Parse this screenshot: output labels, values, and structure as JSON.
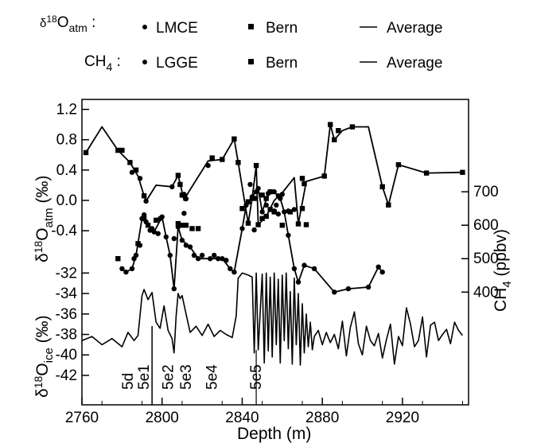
{
  "chart_data": [
    {
      "panel": "d18O_atm",
      "type": "line",
      "ylabel": "δ18Oatm (‰)",
      "y_ticks": [
        "-0.4",
        "0.0",
        "0.4",
        "0.8",
        "1.2"
      ],
      "y_tick_values": [
        -0.4,
        0.0,
        0.4,
        0.8,
        1.2
      ],
      "ylim": [
        1.3,
        -0.42
      ],
      "series": [
        {
          "name": "LMCE",
          "marker": "circle",
          "x": [
            2785,
            2789,
            2791,
            2792,
            2805,
            2811,
            2811,
            2812,
            2823,
            2844,
            2846,
            2856,
            2858,
            2858,
            2860,
            2863,
            2866
          ],
          "y": [
            0.37,
            0.29,
            -0.19,
            -0.01,
            0.18,
            -0.17,
            0.08,
            0.02,
            0.46,
            0.21,
            -0.39,
            -0.14,
            -0.18,
            0.06,
            0.08,
            -0.14,
            -0.12
          ]
        },
        {
          "name": "Bern",
          "marker": "square",
          "x": [
            2762,
            2778,
            2780,
            2784,
            2787,
            2791,
            2808,
            2809,
            2810,
            2825,
            2830,
            2836,
            2838,
            2843,
            2845,
            2847,
            2848,
            2850,
            2852,
            2854,
            2868,
            2870,
            2871,
            2872,
            2881,
            2884,
            2886,
            2888,
            2895,
            2910,
            2913,
            2918,
            2932,
            2950
          ],
          "y": [
            0.63,
            0.66,
            0.66,
            0.5,
            0.4,
            0.06,
            0.33,
            0.21,
            0.07,
            0.56,
            0.54,
            0.81,
            0.5,
            -0.3,
            0.03,
            0.46,
            -0.32,
            -0.24,
            -0.21,
            -0.12,
            -0.31,
            0.29,
            0.22,
            -0.32,
            0.32,
            1.0,
            0.8,
            0.92,
            0.97,
            0.18,
            -0.06,
            0.47,
            0.36,
            0.37
          ]
        },
        {
          "name": "Average",
          "marker": "line",
          "x": [
            2762,
            2770,
            2778,
            2784,
            2788,
            2791,
            2792,
            2797,
            2805,
            2808,
            2811,
            2813,
            2823,
            2830,
            2836,
            2838,
            2843,
            2845,
            2847,
            2848,
            2852,
            2856,
            2860,
            2866,
            2868,
            2872,
            2881,
            2884,
            2886,
            2890,
            2895,
            2903,
            2910,
            2913,
            2918,
            2932,
            2950
          ],
          "y": [
            0.63,
            0.97,
            0.66,
            0.5,
            0.32,
            0.06,
            -0.01,
            0.2,
            0.18,
            0.33,
            0.0,
            0.1,
            0.52,
            0.54,
            0.81,
            0.5,
            -0.3,
            0.03,
            0.46,
            -0.32,
            -0.21,
            0.0,
            0.1,
            0.3,
            -0.31,
            0.25,
            0.32,
            1.0,
            0.8,
            0.92,
            0.97,
            0.97,
            0.18,
            -0.06,
            0.47,
            0.36,
            0.37
          ]
        }
      ]
    },
    {
      "panel": "CH4",
      "type": "line",
      "ylabel": "CH4 (ppbv)",
      "y_ticks": [
        "400",
        "500",
        "600",
        "700"
      ],
      "y_tick_values": [
        400,
        500,
        600,
        700
      ],
      "ylim": [
        365,
        755
      ],
      "series": [
        {
          "name": "LGGE",
          "marker": "circle",
          "x": [
            2780,
            2782,
            2785,
            2786,
            2787,
            2789,
            2790,
            2792,
            2794,
            2795,
            2796,
            2798,
            2799,
            2800,
            2802,
            2804,
            2806,
            2806,
            2808,
            2810,
            2812,
            2814,
            2816,
            2818,
            2820,
            2824,
            2826,
            2828,
            2830,
            2832,
            2834,
            2836,
            2840,
            2842,
            2845,
            2847,
            2848,
            2850,
            2852,
            2853,
            2856,
            2857,
            2859,
            2861,
            2863,
            2866,
            2868,
            2871,
            2876,
            2886,
            2893,
            2903,
            2908,
            2910
          ],
          "y": [
            470,
            460,
            470,
            500,
            510,
            540,
            620,
            610,
            585,
            590,
            580,
            575,
            620,
            625,
            565,
            510,
            410,
            560,
            595,
            555,
            540,
            535,
            510,
            500,
            510,
            500,
            510,
            500,
            500,
            495,
            470,
            460,
            590,
            660,
            685,
            700,
            710,
            640,
            660,
            695,
            700,
            660,
            680,
            640,
            570,
            470,
            430,
            480,
            470,
            400,
            410,
            415,
            475,
            460
          ]
        },
        {
          "name": "Bern",
          "marker": "square",
          "x": [
            2778,
            2788,
            2791,
            2793,
            2797,
            2808,
            2810,
            2812,
            2815,
            2818,
            2840,
            2843,
            2846,
            2850,
            2852,
            2854,
            2856,
            2860,
            2864,
            2870
          ],
          "y": [
            500,
            545,
            620,
            600,
            615,
            605,
            600,
            600,
            590,
            590,
            650,
            670,
            680,
            690,
            680,
            700,
            640,
            600,
            640,
            650
          ]
        },
        {
          "name": "Average",
          "marker": "line",
          "x": [
            2780,
            2782,
            2785,
            2787,
            2790,
            2792,
            2796,
            2800,
            2802,
            2804,
            2806,
            2808,
            2810,
            2814,
            2818,
            2824,
            2830,
            2834,
            2836,
            2840,
            2842,
            2845,
            2848,
            2850,
            2853,
            2856,
            2859,
            2861,
            2863,
            2866,
            2868,
            2871,
            2876,
            2886,
            2893,
            2903,
            2908,
            2910
          ],
          "y": [
            470,
            460,
            470,
            510,
            620,
            610,
            580,
            625,
            565,
            510,
            410,
            595,
            555,
            535,
            500,
            500,
            500,
            470,
            460,
            590,
            660,
            685,
            710,
            640,
            695,
            700,
            680,
            640,
            570,
            470,
            430,
            480,
            470,
            400,
            410,
            415,
            475,
            460
          ]
        }
      ]
    },
    {
      "panel": "d18O_ice",
      "type": "line",
      "ylabel": "δ18Oice (‰)",
      "y_ticks": [
        "-32",
        "-34",
        "-36",
        "-38",
        "-40",
        "-42"
      ],
      "y_tick_values": [
        -32,
        -34,
        -36,
        -38,
        -40,
        -42
      ],
      "ylim": [
        -43.4,
        -31.2
      ],
      "series": [
        {
          "name": "δ18Oice",
          "marker": "line",
          "x": [
            2760,
            2765,
            2770,
            2775,
            2780,
            2783,
            2786,
            2788,
            2790,
            2791,
            2793,
            2795,
            2797,
            2799,
            2801,
            2803,
            2805,
            2806,
            2807,
            2808,
            2809,
            2810,
            2812,
            2814,
            2817,
            2820,
            2823,
            2826,
            2829,
            2832,
            2835,
            2837,
            2838,
            2840,
            2843,
            2845,
            2846,
            2847,
            2848,
            2850,
            2851,
            2852,
            2853,
            2854,
            2855,
            2856,
            2857,
            2858,
            2859,
            2860,
            2861,
            2862,
            2863,
            2864,
            2865,
            2866,
            2867,
            2868,
            2869,
            2870,
            2871,
            2872,
            2873,
            2874,
            2875,
            2876,
            2878,
            2880,
            2882,
            2884,
            2886,
            2888,
            2890,
            2892,
            2894,
            2896,
            2898,
            2900,
            2902,
            2904,
            2906,
            2908,
            2910,
            2912,
            2914,
            2916,
            2918,
            2920,
            2922,
            2924,
            2926,
            2928,
            2930,
            2932,
            2934,
            2936,
            2938,
            2940,
            2942,
            2944,
            2946,
            2948,
            2950
          ],
          "y": [
            -38.6,
            -38.2,
            -39.0,
            -38.4,
            -39.2,
            -37.8,
            -38.6,
            -38.1,
            -34.2,
            -33.6,
            -34.6,
            -33.9,
            -36.8,
            -37.4,
            -35.2,
            -37.6,
            -38.4,
            -39.8,
            -36.2,
            -34.0,
            -34.5,
            -34.2,
            -36.0,
            -37.8,
            -37.2,
            -38.1,
            -37.0,
            -38.2,
            -37.6,
            -38.0,
            -38.3,
            -36.2,
            -32.5,
            -32.0,
            -32.2,
            -32.4,
            -39.8,
            -32.0,
            -39.5,
            -32.1,
            -40.8,
            -32.0,
            -39.6,
            -32.4,
            -40.2,
            -32.0,
            -39.0,
            -32.6,
            -40.8,
            -32.2,
            -38.6,
            -32.0,
            -39.4,
            -33.8,
            -40.9,
            -32.5,
            -39.0,
            -34.0,
            -41.0,
            -35.0,
            -39.8,
            -36.0,
            -39.2,
            -36.8,
            -39.5,
            -38.2,
            -37.6,
            -39.0,
            -37.8,
            -38.8,
            -38.0,
            -39.4,
            -36.7,
            -40.1,
            -37.3,
            -35.8,
            -38.9,
            -40.0,
            -37.2,
            -38.6,
            -39.1,
            -37.9,
            -40.3,
            -38.5,
            -37.0,
            -40.9,
            -38.2,
            -39.1,
            -35.4,
            -37.0,
            -39.2,
            -38.6,
            -36.3,
            -40.2,
            -37.1,
            -36.8,
            -38.6,
            -38.0,
            -37.5,
            -38.9,
            -36.8,
            -37.6,
            -38.1
          ]
        }
      ],
      "event_labels": [
        {
          "text": "5d",
          "depth": 2783
        },
        {
          "text": "5e1",
          "depth": 2791
        },
        {
          "text": "5e2",
          "depth": 2803
        },
        {
          "text": "5e3",
          "depth": 2812
        },
        {
          "text": "5e4",
          "depth": 2825
        },
        {
          "text": "5e5",
          "depth": 2847
        }
      ]
    }
  ],
  "x_axis": {
    "label": "Depth (m)",
    "ticks": [
      "2760",
      "2800",
      "2840",
      "2880",
      "2920"
    ],
    "tick_values": [
      2760,
      2800,
      2840,
      2880,
      2920
    ],
    "range": [
      2760,
      2953
    ]
  },
  "legend": {
    "row1": {
      "label": "δ18Oatm :",
      "items": [
        "LMCE",
        "Bern",
        "Average"
      ]
    },
    "row2": {
      "label": "CH4 :",
      "items": [
        "LGGE",
        "Bern",
        "Average"
      ]
    }
  }
}
